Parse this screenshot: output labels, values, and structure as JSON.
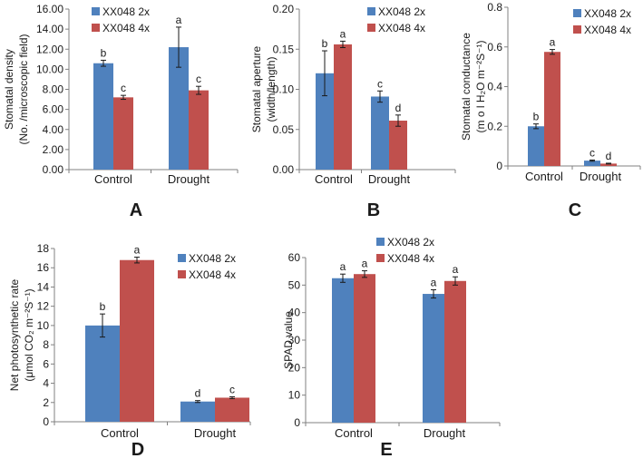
{
  "colors": {
    "series_2x": "#4F81BD",
    "series_4x": "#C0504D",
    "axis": "#808080",
    "error": "#1a1a1a"
  },
  "chart_data": [
    {
      "panel": "A",
      "type": "bar",
      "ylabel": "Stomatal density",
      "ylabel_sub": "(No. /microscopic field)",
      "categories": [
        "Control",
        "Drought"
      ],
      "ylim": [
        0,
        16
      ],
      "yticks": [
        "0.00",
        "2.00",
        "4.00",
        "6.00",
        "8.00",
        "10.00",
        "12.00",
        "14.00",
        "16.00"
      ],
      "ytick_values": [
        0,
        2,
        4,
        6,
        8,
        10,
        12,
        14,
        16
      ],
      "legend": [
        "XX048 2x",
        "XX048 4x"
      ],
      "series": [
        {
          "name": "XX048 2x",
          "values": [
            10.6,
            12.2
          ],
          "errors": [
            0.3,
            2.0
          ],
          "labels": [
            "b",
            "a"
          ]
        },
        {
          "name": "XX048 4x",
          "values": [
            7.2,
            7.9
          ],
          "errors": [
            0.2,
            0.4
          ],
          "labels": [
            "c",
            "c"
          ]
        }
      ]
    },
    {
      "panel": "B",
      "type": "bar",
      "ylabel": "Stomatal aperture",
      "ylabel_sub": "(width/length)",
      "categories": [
        "Control",
        "Drought"
      ],
      "ylim": [
        0,
        0.2
      ],
      "yticks": [
        "0.00",
        "0.05",
        "0.10",
        "0.15",
        "0.20"
      ],
      "ytick_values": [
        0,
        0.05,
        0.1,
        0.15,
        0.2
      ],
      "legend": [
        "XX048 2x",
        "XX048 4x"
      ],
      "series": [
        {
          "name": "XX048 2x",
          "values": [
            0.12,
            0.091
          ],
          "errors": [
            0.028,
            0.007
          ],
          "labels": [
            "b",
            "c"
          ]
        },
        {
          "name": "XX048 4x",
          "values": [
            0.156,
            0.061
          ],
          "errors": [
            0.004,
            0.007
          ],
          "labels": [
            "a",
            "d"
          ]
        }
      ]
    },
    {
      "panel": "C",
      "type": "bar",
      "ylabel": "Stomatal conductance",
      "ylabel_sub": "(m o l H₂O m⁻²S⁻¹)",
      "categories": [
        "Control",
        "Drought"
      ],
      "ylim": [
        0,
        0.8
      ],
      "yticks": [
        "0",
        "0.2",
        "0.4",
        "0.6",
        "0.8"
      ],
      "ytick_values": [
        0,
        0.2,
        0.4,
        0.6,
        0.8
      ],
      "legend": [
        "XX048 2x",
        "XX048 4x"
      ],
      "series": [
        {
          "name": "XX048 2x",
          "values": [
            0.2,
            0.027
          ],
          "errors": [
            0.012,
            0.003
          ],
          "labels": [
            "b",
            "c"
          ]
        },
        {
          "name": "XX048 4x",
          "values": [
            0.575,
            0.012
          ],
          "errors": [
            0.012,
            0.002
          ],
          "labels": [
            "a",
            "d"
          ]
        }
      ]
    },
    {
      "panel": "D",
      "type": "bar",
      "ylabel": "Net photosynthetic rate",
      "ylabel_sub": "(μmol CO₂ m⁻²S⁻¹)",
      "categories": [
        "Control",
        "Drought"
      ],
      "ylim": [
        0,
        18
      ],
      "yticks": [
        "0",
        "2",
        "4",
        "6",
        "8",
        "10",
        "12",
        "14",
        "16",
        "18"
      ],
      "ytick_values": [
        0,
        2,
        4,
        6,
        8,
        10,
        12,
        14,
        16,
        18
      ],
      "legend": [
        "XX048 2x",
        "XX048 4x"
      ],
      "series": [
        {
          "name": "XX048 2x",
          "values": [
            10.0,
            2.1
          ],
          "errors": [
            1.2,
            0.1
          ],
          "labels": [
            "b",
            "d"
          ]
        },
        {
          "name": "XX048 4x",
          "values": [
            16.8,
            2.5
          ],
          "errors": [
            0.3,
            0.1
          ],
          "labels": [
            "a",
            "c"
          ]
        }
      ]
    },
    {
      "panel": "E",
      "type": "bar",
      "ylabel": "SPAD value",
      "ylabel_sub": "",
      "categories": [
        "Control",
        "Drought"
      ],
      "ylim": [
        0,
        60
      ],
      "yticks": [
        "0",
        "10",
        "20",
        "30",
        "40",
        "50",
        "60"
      ],
      "ytick_values": [
        0,
        10,
        20,
        30,
        40,
        50,
        60
      ],
      "legend": [
        "XX048 2x",
        "XX048 4x"
      ],
      "series": [
        {
          "name": "XX048 2x",
          "values": [
            52.5,
            46.8
          ],
          "errors": [
            1.5,
            1.5
          ],
          "labels": [
            "a",
            "a"
          ]
        },
        {
          "name": "XX048 4x",
          "values": [
            54.0,
            51.5
          ],
          "errors": [
            1.2,
            1.5
          ],
          "labels": [
            "a",
            "a"
          ]
        }
      ]
    }
  ]
}
